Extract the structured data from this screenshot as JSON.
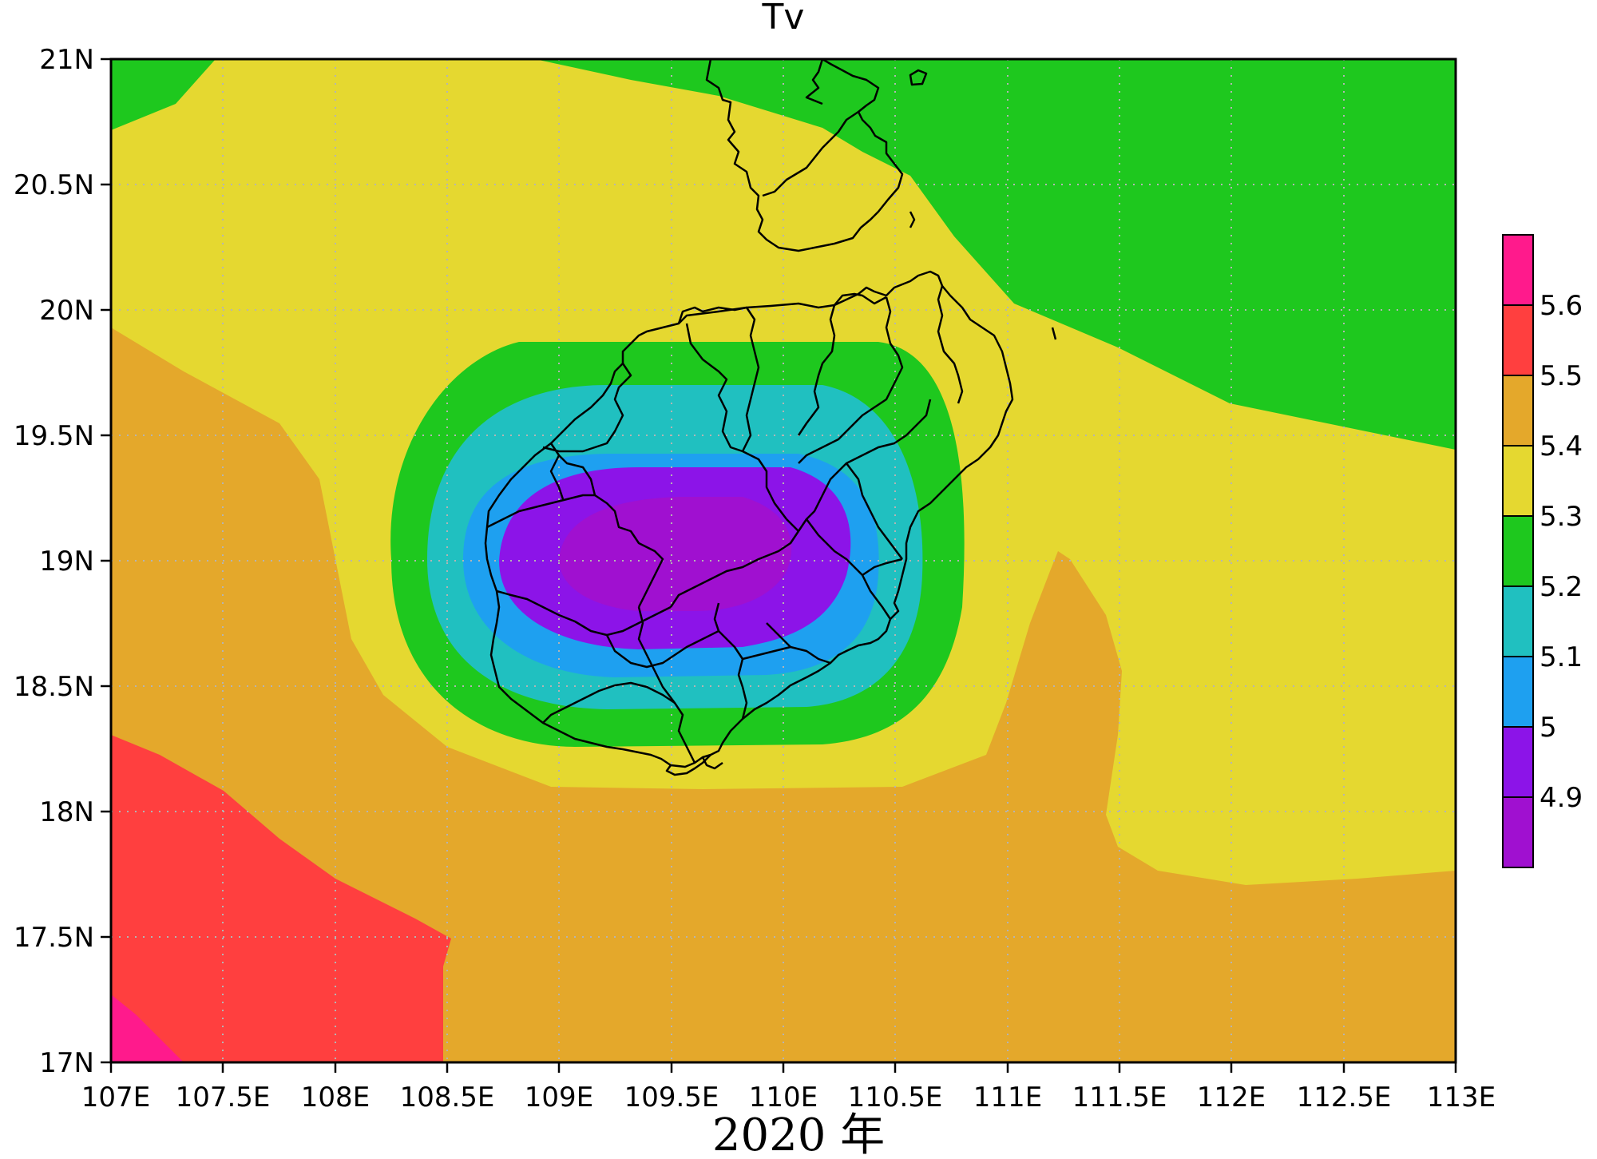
{
  "title": "Tv",
  "caption": "2020 年",
  "map": {
    "lon_range": [
      107,
      113
    ],
    "lat_range": [
      17,
      21
    ],
    "x_ticks": [
      "107E",
      "107.5E",
      "108E",
      "108.5E",
      "109E",
      "109.5E",
      "110E",
      "110.5E",
      "111E",
      "111.5E",
      "112E",
      "112.5E",
      "113E"
    ],
    "y_ticks": [
      "17N",
      "17.5N",
      "18N",
      "18.5N",
      "19N",
      "19.5N",
      "20N",
      "20.5N",
      "21N"
    ],
    "grid": "dotted"
  },
  "colorbar": {
    "labels": [
      "5.6",
      "5.5",
      "5.4",
      "5.3",
      "5.2",
      "5.1",
      "5",
      "4.9"
    ],
    "colors": [
      "#ff1a8c",
      "#ff3f3f",
      "#e4a82b",
      "#e5d830",
      "#1ec81e",
      "#20c0c0",
      "#1ea0f0",
      "#8c14e8",
      "#a010d0"
    ]
  },
  "level_colors": {
    "4.8": "#a010d0",
    "4.9": "#8c14e8",
    "5.0": "#1ea0f0",
    "5.1": "#20c0c0",
    "5.2": "#1ec81e",
    "5.3": "#e5d830",
    "5.4": "#e4a82b",
    "5.5": "#ff3f3f",
    "5.6": "#ff1a8c"
  }
}
